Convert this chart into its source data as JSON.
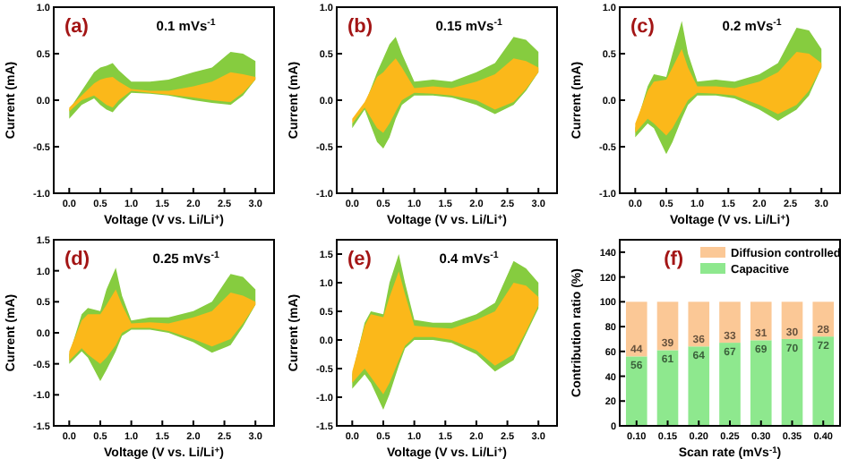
{
  "chart_data": [
    {
      "type": "area",
      "title": "0.1 mVs$^{-1}$",
      "annotations": [
        "(a)"
      ],
      "xlabel": "Voltage (V vs. Li/Li$^{+}$)",
      "ylabel": "Current (mA)",
      "xlim": [
        -0.25,
        3.3
      ],
      "xticks": [
        {
          "value": 0,
          "label": "0.0"
        },
        {
          "value": 0.5,
          "label": "0.5"
        },
        {
          "value": 1,
          "label": "1.0"
        },
        {
          "value": 1.5,
          "label": "1.5"
        },
        {
          "value": 2,
          "label": "2.0"
        },
        {
          "value": 2.5,
          "label": "2.5"
        },
        {
          "value": 3,
          "label": "3.0"
        }
      ],
      "ylim": [
        -1,
        1
      ],
      "yticks": [
        {
          "value": -1,
          "label": "-1.0"
        },
        {
          "value": -0.5,
          "label": "-0.5"
        },
        {
          "value": 0,
          "label": "0.0"
        },
        {
          "value": 0.5,
          "label": "0.5"
        },
        {
          "value": 1,
          "label": "1.0"
        }
      ],
      "series": [
        {
          "color": "#86cc3f",
          "x": [
            0,
            0.2,
            0.4,
            0.5,
            0.6,
            0.7,
            0.8,
            1.0,
            1.3,
            1.6,
            2.0,
            2.3,
            2.6,
            2.8,
            3.0,
            3.0,
            2.8,
            2.6,
            2.3,
            2.0,
            1.6,
            1.3,
            1.0,
            0.8,
            0.7,
            0.6,
            0.5,
            0.4,
            0.2,
            0
          ],
          "values": [
            -0.1,
            0.1,
            0.3,
            0.35,
            0.37,
            0.4,
            0.32,
            0.2,
            0.2,
            0.22,
            0.3,
            0.35,
            0.52,
            0.5,
            0.42,
            0.22,
            0.05,
            -0.05,
            -0.03,
            0.0,
            0.05,
            0.07,
            0.08,
            -0.05,
            -0.13,
            -0.1,
            -0.05,
            0.02,
            -0.05,
            -0.2
          ]
        },
        {
          "color": "#fbb81a",
          "x": [
            0,
            0.2,
            0.4,
            0.5,
            0.6,
            0.7,
            0.8,
            1.0,
            1.3,
            1.6,
            2.0,
            2.3,
            2.6,
            2.8,
            3.0,
            3.0,
            2.8,
            2.6,
            2.3,
            2.0,
            1.6,
            1.3,
            1.0,
            0.8,
            0.7,
            0.6,
            0.5,
            0.4,
            0.2,
            0
          ],
          "values": [
            -0.08,
            0.05,
            0.18,
            0.22,
            0.24,
            0.25,
            0.2,
            0.12,
            0.1,
            0.1,
            0.15,
            0.2,
            0.3,
            0.28,
            0.25,
            0.22,
            0.08,
            -0.02,
            0.0,
            0.03,
            0.06,
            0.08,
            0.1,
            0.0,
            -0.08,
            -0.05,
            0.0,
            0.05,
            0.0,
            -0.12
          ]
        }
      ]
    },
    {
      "type": "area",
      "title": "0.15 mVs$^{-1}$",
      "annotations": [
        "(b)"
      ],
      "xlabel": "Voltage (V vs. Li/Li$^{+}$)",
      "ylabel": "Current (mA)",
      "xlim": [
        -0.25,
        3.3
      ],
      "xticks": [
        {
          "value": 0,
          "label": "0.0"
        },
        {
          "value": 0.5,
          "label": "0.5"
        },
        {
          "value": 1,
          "label": "1.0"
        },
        {
          "value": 1.5,
          "label": "1.5"
        },
        {
          "value": 2,
          "label": "2.0"
        },
        {
          "value": 2.5,
          "label": "2.5"
        },
        {
          "value": 3,
          "label": "3.0"
        }
      ],
      "ylim": [
        -1,
        1
      ],
      "yticks": [
        {
          "value": -1,
          "label": "-1.0"
        },
        {
          "value": -0.5,
          "label": "-0.5"
        },
        {
          "value": 0,
          "label": "0.0"
        },
        {
          "value": 0.5,
          "label": "0.5"
        },
        {
          "value": 1,
          "label": "1.0"
        }
      ],
      "series": [
        {
          "color": "#86cc3f",
          "x": [
            0,
            0.2,
            0.4,
            0.5,
            0.6,
            0.7,
            0.8,
            1.0,
            1.3,
            1.6,
            2.0,
            2.3,
            2.6,
            2.8,
            3.0,
            3.0,
            2.8,
            2.6,
            2.3,
            2.0,
            1.6,
            1.3,
            1.0,
            0.8,
            0.7,
            0.6,
            0.5,
            0.4,
            0.2,
            0
          ],
          "values": [
            -0.25,
            -0.05,
            0.3,
            0.45,
            0.6,
            0.68,
            0.5,
            0.2,
            0.22,
            0.2,
            0.3,
            0.4,
            0.68,
            0.65,
            0.52,
            0.3,
            0.1,
            -0.05,
            -0.15,
            -0.05,
            0.03,
            0.05,
            0.05,
            -0.05,
            -0.2,
            -0.4,
            -0.52,
            -0.45,
            -0.1,
            -0.3
          ]
        },
        {
          "color": "#fbb81a",
          "x": [
            0,
            0.2,
            0.4,
            0.5,
            0.6,
            0.7,
            0.8,
            1.0,
            1.3,
            1.6,
            2.0,
            2.3,
            2.6,
            2.8,
            3.0,
            3.0,
            2.8,
            2.6,
            2.3,
            2.0,
            1.6,
            1.3,
            1.0,
            0.8,
            0.7,
            0.6,
            0.5,
            0.4,
            0.2,
            0
          ],
          "values": [
            -0.2,
            -0.02,
            0.25,
            0.3,
            0.38,
            0.45,
            0.35,
            0.13,
            0.15,
            0.13,
            0.2,
            0.28,
            0.45,
            0.42,
            0.35,
            0.3,
            0.12,
            -0.02,
            -0.1,
            0.0,
            0.05,
            0.07,
            0.08,
            0.0,
            -0.12,
            -0.25,
            -0.35,
            -0.3,
            -0.08,
            -0.25
          ]
        }
      ]
    },
    {
      "type": "area",
      "title": "0.2 mVs$^{-1}$",
      "annotations": [
        "(c)"
      ],
      "xlabel": "Voltage (V vs. Li/Li$^{+}$)",
      "ylabel": "Current (mA)",
      "xlim": [
        -0.25,
        3.3
      ],
      "xticks": [
        {
          "value": 0,
          "label": "0.0"
        },
        {
          "value": 0.5,
          "label": "0.5"
        },
        {
          "value": 1,
          "label": "1.0"
        },
        {
          "value": 1.5,
          "label": "1.5"
        },
        {
          "value": 2,
          "label": "2.0"
        },
        {
          "value": 2.5,
          "label": "2.5"
        },
        {
          "value": 3,
          "label": "3.0"
        }
      ],
      "ylim": [
        -1,
        1
      ],
      "yticks": [
        {
          "value": -1,
          "label": "-1.0"
        },
        {
          "value": -0.5,
          "label": "-0.5"
        },
        {
          "value": 0,
          "label": "0.0"
        },
        {
          "value": 0.5,
          "label": "0.5"
        },
        {
          "value": 1,
          "label": "1.0"
        }
      ],
      "series": [
        {
          "color": "#86cc3f",
          "x": [
            0,
            0.2,
            0.3,
            0.5,
            0.6,
            0.75,
            0.85,
            1.0,
            1.3,
            1.6,
            2.0,
            2.3,
            2.6,
            2.8,
            3.0,
            3.0,
            2.8,
            2.6,
            2.3,
            2.0,
            1.6,
            1.3,
            1.0,
            0.85,
            0.75,
            0.6,
            0.5,
            0.3,
            0.2,
            0
          ],
          "values": [
            -0.3,
            0.15,
            0.28,
            0.25,
            0.5,
            0.85,
            0.5,
            0.2,
            0.22,
            0.2,
            0.28,
            0.4,
            0.78,
            0.75,
            0.55,
            0.35,
            0.05,
            -0.1,
            -0.22,
            -0.1,
            0.02,
            0.05,
            0.05,
            -0.05,
            -0.2,
            -0.45,
            -0.58,
            -0.3,
            -0.25,
            -0.4
          ]
        },
        {
          "color": "#fbb81a",
          "x": [
            0,
            0.2,
            0.3,
            0.5,
            0.6,
            0.75,
            0.85,
            1.0,
            1.3,
            1.6,
            2.0,
            2.3,
            2.6,
            2.8,
            3.0,
            3.0,
            2.8,
            2.6,
            2.3,
            2.0,
            1.6,
            1.3,
            1.0,
            0.85,
            0.75,
            0.6,
            0.5,
            0.3,
            0.2,
            0
          ],
          "values": [
            -0.25,
            0.1,
            0.2,
            0.22,
            0.35,
            0.55,
            0.35,
            0.15,
            0.15,
            0.13,
            0.2,
            0.3,
            0.52,
            0.5,
            0.4,
            0.35,
            0.1,
            -0.05,
            -0.15,
            -0.05,
            0.05,
            0.07,
            0.08,
            0.0,
            -0.12,
            -0.3,
            -0.38,
            -0.25,
            -0.2,
            -0.35
          ]
        }
      ]
    },
    {
      "type": "area",
      "title": "0.25 mVs$^{-1}$",
      "annotations": [
        "(d)"
      ],
      "xlabel": "Voltage (V vs. Li/Li$^{+}$)",
      "ylabel": "Current (mA)",
      "xlim": [
        -0.25,
        3.3
      ],
      "xticks": [
        {
          "value": 0,
          "label": "0.0"
        },
        {
          "value": 0.5,
          "label": "0.5"
        },
        {
          "value": 1,
          "label": "1.0"
        },
        {
          "value": 1.5,
          "label": "1.5"
        },
        {
          "value": 2,
          "label": "2.0"
        },
        {
          "value": 2.5,
          "label": "2.5"
        },
        {
          "value": 3,
          "label": "3.0"
        }
      ],
      "ylim": [
        -1.5,
        1.5
      ],
      "yticks": [
        {
          "value": -1.5,
          "label": "-1.5"
        },
        {
          "value": -1,
          "label": "-1.0"
        },
        {
          "value": -0.5,
          "label": "-0.5"
        },
        {
          "value": 0,
          "label": "0.0"
        },
        {
          "value": 0.5,
          "label": "0.5"
        },
        {
          "value": 1,
          "label": "1.0"
        },
        {
          "value": 1.5,
          "label": "1.5"
        }
      ],
      "series": [
        {
          "color": "#86cc3f",
          "x": [
            0,
            0.2,
            0.3,
            0.5,
            0.6,
            0.75,
            0.85,
            1.0,
            1.3,
            1.6,
            2.0,
            2.3,
            2.6,
            2.8,
            3.0,
            3.0,
            2.8,
            2.6,
            2.3,
            2.0,
            1.6,
            1.3,
            1.0,
            0.85,
            0.75,
            0.6,
            0.5,
            0.3,
            0.2,
            0
          ],
          "values": [
            -0.35,
            0.3,
            0.4,
            0.35,
            0.7,
            1.05,
            0.6,
            0.2,
            0.25,
            0.25,
            0.35,
            0.5,
            0.95,
            0.9,
            0.7,
            0.45,
            0.1,
            -0.2,
            -0.32,
            -0.15,
            0.0,
            0.05,
            0.05,
            -0.05,
            -0.3,
            -0.6,
            -0.78,
            -0.4,
            -0.3,
            -0.5
          ]
        },
        {
          "color": "#fbb81a",
          "x": [
            0,
            0.2,
            0.3,
            0.5,
            0.6,
            0.75,
            0.85,
            1.0,
            1.3,
            1.6,
            2.0,
            2.3,
            2.6,
            2.8,
            3.0,
            3.0,
            2.8,
            2.6,
            2.3,
            2.0,
            1.6,
            1.3,
            1.0,
            0.85,
            0.75,
            0.6,
            0.5,
            0.3,
            0.2,
            0
          ],
          "values": [
            -0.3,
            0.2,
            0.3,
            0.3,
            0.45,
            0.7,
            0.45,
            0.15,
            0.17,
            0.15,
            0.25,
            0.35,
            0.65,
            0.6,
            0.5,
            0.45,
            0.15,
            -0.1,
            -0.22,
            -0.1,
            0.03,
            0.08,
            0.08,
            0.0,
            -0.2,
            -0.4,
            -0.5,
            -0.35,
            -0.25,
            -0.45
          ]
        }
      ]
    },
    {
      "type": "area",
      "title": "0.4 mVs$^{-1}$",
      "annotations": [
        "(e)"
      ],
      "xlabel": "Voltage (V vs. Li/Li$^{+}$)",
      "ylabel": "Current (mA)",
      "xlim": [
        -0.25,
        3.3
      ],
      "xticks": [
        {
          "value": 0,
          "label": "0.0"
        },
        {
          "value": 0.5,
          "label": "0.5"
        },
        {
          "value": 1,
          "label": "1.0"
        },
        {
          "value": 1.5,
          "label": "1.5"
        },
        {
          "value": 2,
          "label": "2.0"
        },
        {
          "value": 2.5,
          "label": "2.5"
        },
        {
          "value": 3,
          "label": "3.0"
        }
      ],
      "ylim": [
        -1.5,
        1.75
      ],
      "yticks": [
        {
          "value": -1.5,
          "label": "-1.5"
        },
        {
          "value": -1,
          "label": "-1.0"
        },
        {
          "value": -0.5,
          "label": "-0.5"
        },
        {
          "value": 0,
          "label": "0.0"
        },
        {
          "value": 0.5,
          "label": "0.5"
        },
        {
          "value": 1,
          "label": "1.0"
        },
        {
          "value": 1.5,
          "label": "1.5"
        }
      ],
      "series": [
        {
          "color": "#86cc3f",
          "x": [
            0,
            0.2,
            0.3,
            0.5,
            0.6,
            0.75,
            0.85,
            1.0,
            1.3,
            1.6,
            2.0,
            2.3,
            2.6,
            2.8,
            3.0,
            3.0,
            2.8,
            2.6,
            2.3,
            2.0,
            1.6,
            1.3,
            1.0,
            0.85,
            0.75,
            0.6,
            0.5,
            0.3,
            0.2,
            0
          ],
          "values": [
            -0.6,
            0.3,
            0.5,
            0.45,
            1.0,
            1.5,
            1.0,
            0.35,
            0.3,
            0.3,
            0.45,
            0.65,
            1.38,
            1.25,
            1.0,
            0.55,
            0.1,
            -0.35,
            -0.55,
            -0.25,
            -0.05,
            0.0,
            0.0,
            -0.15,
            -0.45,
            -0.95,
            -1.22,
            -0.75,
            -0.6,
            -0.85
          ]
        },
        {
          "color": "#fbb81a",
          "x": [
            0,
            0.2,
            0.3,
            0.5,
            0.6,
            0.75,
            0.85,
            1.0,
            1.3,
            1.6,
            2.0,
            2.3,
            2.6,
            2.8,
            3.0,
            3.0,
            2.8,
            2.6,
            2.3,
            2.0,
            1.6,
            1.3,
            1.0,
            0.85,
            0.75,
            0.6,
            0.5,
            0.3,
            0.2,
            0
          ],
          "values": [
            -0.55,
            0.25,
            0.45,
            0.4,
            0.75,
            1.2,
            0.8,
            0.25,
            0.22,
            0.2,
            0.35,
            0.5,
            1.0,
            0.95,
            0.75,
            0.6,
            0.15,
            -0.25,
            -0.45,
            -0.18,
            0.0,
            0.05,
            0.05,
            -0.1,
            -0.35,
            -0.75,
            -0.95,
            -0.65,
            -0.5,
            -0.75
          ]
        }
      ]
    },
    {
      "type": "bar",
      "stacked": true,
      "annotations": [
        "(f)"
      ],
      "xlabel": "Scan rate (mVs$^{-1}$)",
      "ylabel": "Contribution ratio (%)",
      "categories": [
        "0.10",
        "0.15",
        "0.20",
        "0.25",
        "0.30",
        "0.35",
        "0.40"
      ],
      "ylim": [
        0,
        150
      ],
      "yticks": [
        0,
        20,
        40,
        60,
        80,
        100,
        120,
        140
      ],
      "legend": "top right",
      "data_labels": true,
      "series": [
        {
          "name": "Capacitive",
          "color": "#8ee88e",
          "values": [
            56,
            61,
            64,
            67,
            69,
            70,
            72
          ]
        },
        {
          "name": "Diffusion controlled",
          "color": "#fbc896",
          "values": [
            44,
            39,
            36,
            33,
            31,
            30,
            28
          ]
        }
      ]
    }
  ]
}
